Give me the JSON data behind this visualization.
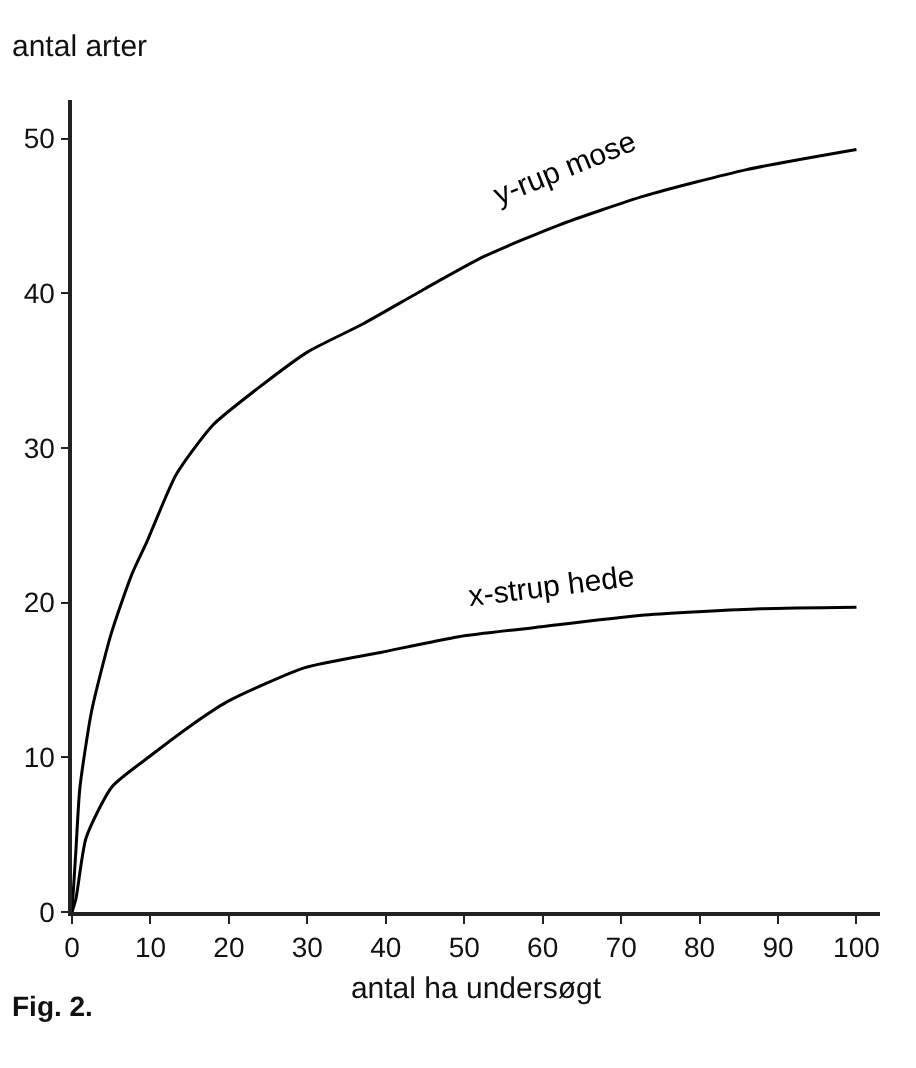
{
  "chart_data": {
    "type": "line",
    "xlabel": "antal ha undersøgt",
    "ylabel": "antal arter",
    "annotations": [
      "Fig. 2."
    ],
    "xlim": [
      0,
      103
    ],
    "ylim": [
      0,
      52.5
    ],
    "xticks": [
      0,
      10,
      20,
      30,
      40,
      50,
      60,
      70,
      80,
      90,
      100
    ],
    "yticks": [
      0,
      10,
      20,
      30,
      40,
      50
    ],
    "grid": false,
    "legend": false,
    "marker": "none",
    "line_style": "solid",
    "series": [
      {
        "name": "y-rup mose",
        "color": "#000000",
        "x": [
          0,
          0.5,
          1,
          2.5,
          5,
          7.6,
          9.6,
          13.3,
          18,
          23.8,
          30,
          37,
          45,
          52.6,
          62,
          73,
          86,
          100
        ],
        "values": [
          0,
          4,
          8,
          13,
          18,
          21.8,
          24,
          28.3,
          31.5,
          33.9,
          36.2,
          38,
          40.3,
          42.4,
          44.4,
          46.3,
          48,
          49.3
        ]
      },
      {
        "name": "x-strup hede",
        "color": "#000000",
        "x": [
          0,
          0.5,
          1.8,
          5.1,
          10,
          15,
          19.8,
          29.7,
          39.5,
          49.3,
          59.1,
          73,
          87.8,
          100
        ],
        "values": [
          0,
          0.85,
          4.8,
          8.1,
          10.1,
          12,
          13.6,
          15.8,
          16.8,
          17.8,
          18.4,
          19.2,
          19.6,
          19.7
        ]
      }
    ]
  }
}
